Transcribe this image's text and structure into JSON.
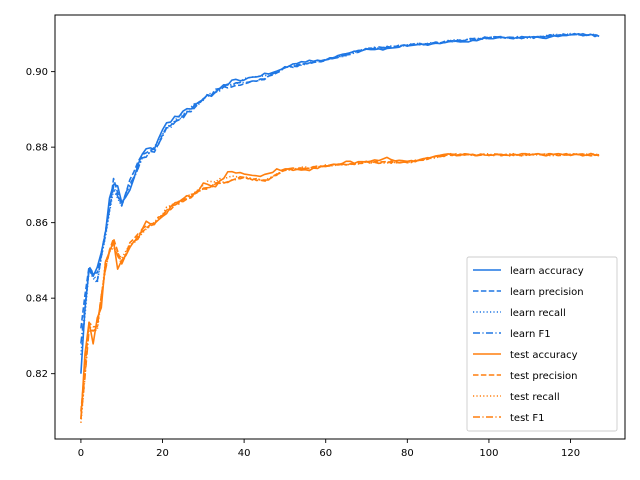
{
  "chart_data": {
    "type": "line",
    "title": "",
    "xlabel": "",
    "ylabel": "",
    "xlim": [
      -6.35,
      133.35
    ],
    "ylim": [
      0.8027,
      0.915
    ],
    "x_ticks": [
      0,
      20,
      40,
      60,
      80,
      100,
      120
    ],
    "y_ticks": [
      0.82,
      0.84,
      0.86,
      0.88,
      0.9
    ],
    "y_tick_labels": [
      "0.82",
      "0.84",
      "0.86",
      "0.88",
      "0.90"
    ],
    "grid": false,
    "legend_position": "lower-right",
    "colors": {
      "learn": "#1f77e4",
      "test": "#ff7f0e"
    },
    "x_range": [
      0,
      127
    ],
    "series": [
      {
        "name": "learn accuracy",
        "group": "learn",
        "dash": "solid",
        "anchors": [
          [
            0,
            0.82
          ],
          [
            1,
            0.838
          ],
          [
            2,
            0.847
          ],
          [
            3,
            0.845
          ],
          [
            4,
            0.849
          ],
          [
            5,
            0.853
          ],
          [
            6,
            0.858
          ],
          [
            7,
            0.866
          ],
          [
            8,
            0.87
          ],
          [
            9,
            0.869
          ],
          [
            10,
            0.865
          ],
          [
            12,
            0.869
          ],
          [
            14,
            0.875
          ],
          [
            16,
            0.88
          ],
          [
            18,
            0.88
          ],
          [
            20,
            0.885
          ],
          [
            22,
            0.887
          ],
          [
            25,
            0.889
          ],
          [
            28,
            0.891
          ],
          [
            30,
            0.893
          ],
          [
            33,
            0.894
          ],
          [
            36,
            0.897
          ],
          [
            40,
            0.898
          ],
          [
            44,
            0.899
          ],
          [
            48,
            0.9
          ],
          [
            52,
            0.902
          ],
          [
            56,
            0.903
          ],
          [
            60,
            0.903
          ],
          [
            65,
            0.905
          ],
          [
            70,
            0.906
          ],
          [
            75,
            0.906
          ],
          [
            80,
            0.907
          ],
          [
            85,
            0.907
          ],
          [
            90,
            0.908
          ],
          [
            95,
            0.908
          ],
          [
            100,
            0.909
          ],
          [
            105,
            0.909
          ],
          [
            110,
            0.909
          ],
          [
            115,
            0.909
          ],
          [
            120,
            0.91
          ],
          [
            127,
            0.9095
          ]
        ]
      },
      {
        "name": "learn precision",
        "group": "learn",
        "dash": "dashed",
        "anchors": [
          [
            0,
            0.832
          ],
          [
            2,
            0.849
          ],
          [
            4,
            0.846
          ],
          [
            6,
            0.857
          ],
          [
            8,
            0.871
          ],
          [
            10,
            0.865
          ],
          [
            12,
            0.871
          ],
          [
            15,
            0.878
          ],
          [
            18,
            0.879
          ],
          [
            21,
            0.885
          ],
          [
            25,
            0.888
          ],
          [
            30,
            0.893
          ],
          [
            35,
            0.896
          ],
          [
            40,
            0.897
          ],
          [
            45,
            0.898
          ],
          [
            50,
            0.901
          ],
          [
            60,
            0.903
          ],
          [
            70,
            0.906
          ],
          [
            80,
            0.907
          ],
          [
            90,
            0.908
          ],
          [
            100,
            0.909
          ],
          [
            110,
            0.909
          ],
          [
            120,
            0.91
          ],
          [
            127,
            0.9095
          ]
        ]
      },
      {
        "name": "learn recall",
        "group": "learn",
        "dash": "dotted",
        "anchors": [
          [
            0,
            0.825
          ],
          [
            2,
            0.847
          ],
          [
            4,
            0.844
          ],
          [
            6,
            0.856
          ],
          [
            8,
            0.869
          ],
          [
            10,
            0.865
          ],
          [
            12,
            0.87
          ],
          [
            15,
            0.877
          ],
          [
            18,
            0.88
          ],
          [
            21,
            0.885
          ],
          [
            25,
            0.889
          ],
          [
            30,
            0.893
          ],
          [
            35,
            0.896
          ],
          [
            40,
            0.898
          ],
          [
            45,
            0.899
          ],
          [
            50,
            0.901
          ],
          [
            60,
            0.903
          ],
          [
            70,
            0.906
          ],
          [
            80,
            0.907
          ],
          [
            90,
            0.908
          ],
          [
            100,
            0.909
          ],
          [
            110,
            0.909
          ],
          [
            120,
            0.91
          ],
          [
            127,
            0.9095
          ]
        ]
      },
      {
        "name": "learn F1",
        "group": "learn",
        "dash": "dashdot",
        "anchors": [
          [
            0,
            0.828
          ],
          [
            2,
            0.848
          ],
          [
            4,
            0.845
          ],
          [
            6,
            0.857
          ],
          [
            8,
            0.87
          ],
          [
            10,
            0.865
          ],
          [
            12,
            0.87
          ],
          [
            15,
            0.877
          ],
          [
            18,
            0.879
          ],
          [
            21,
            0.885
          ],
          [
            25,
            0.888
          ],
          [
            30,
            0.893
          ],
          [
            35,
            0.896
          ],
          [
            40,
            0.897
          ],
          [
            45,
            0.898
          ],
          [
            50,
            0.901
          ],
          [
            60,
            0.903
          ],
          [
            70,
            0.906
          ],
          [
            80,
            0.907
          ],
          [
            90,
            0.908
          ],
          [
            100,
            0.909
          ],
          [
            110,
            0.909
          ],
          [
            120,
            0.91
          ],
          [
            127,
            0.9095
          ]
        ]
      },
      {
        "name": "test accuracy",
        "group": "test",
        "dash": "solid",
        "anchors": [
          [
            0,
            0.808
          ],
          [
            1,
            0.826
          ],
          [
            2,
            0.834
          ],
          [
            3,
            0.828
          ],
          [
            4,
            0.835
          ],
          [
            5,
            0.838
          ],
          [
            6,
            0.849
          ],
          [
            7,
            0.852
          ],
          [
            8,
            0.855
          ],
          [
            9,
            0.848
          ],
          [
            10,
            0.85
          ],
          [
            12,
            0.853
          ],
          [
            14,
            0.856
          ],
          [
            16,
            0.86
          ],
          [
            18,
            0.86
          ],
          [
            20,
            0.862
          ],
          [
            22,
            0.864
          ],
          [
            25,
            0.866
          ],
          [
            28,
            0.868
          ],
          [
            30,
            0.87
          ],
          [
            33,
            0.87
          ],
          [
            36,
            0.873
          ],
          [
            40,
            0.873
          ],
          [
            44,
            0.872
          ],
          [
            48,
            0.874
          ],
          [
            52,
            0.874
          ],
          [
            56,
            0.874
          ],
          [
            60,
            0.875
          ],
          [
            65,
            0.876
          ],
          [
            70,
            0.876
          ],
          [
            75,
            0.877
          ],
          [
            80,
            0.876
          ],
          [
            85,
            0.877
          ],
          [
            90,
            0.878
          ],
          [
            95,
            0.878
          ],
          [
            100,
            0.878
          ],
          [
            105,
            0.878
          ],
          [
            110,
            0.878
          ],
          [
            115,
            0.878
          ],
          [
            120,
            0.878
          ],
          [
            127,
            0.878
          ]
        ]
      },
      {
        "name": "test precision",
        "group": "test",
        "dash": "dashed",
        "anchors": [
          [
            0,
            0.81
          ],
          [
            2,
            0.833
          ],
          [
            4,
            0.832
          ],
          [
            6,
            0.848
          ],
          [
            8,
            0.856
          ],
          [
            10,
            0.849
          ],
          [
            12,
            0.855
          ],
          [
            15,
            0.858
          ],
          [
            18,
            0.86
          ],
          [
            21,
            0.863
          ],
          [
            25,
            0.866
          ],
          [
            30,
            0.869
          ],
          [
            35,
            0.871
          ],
          [
            40,
            0.872
          ],
          [
            45,
            0.871
          ],
          [
            50,
            0.874
          ],
          [
            60,
            0.875
          ],
          [
            70,
            0.876
          ],
          [
            80,
            0.876
          ],
          [
            90,
            0.878
          ],
          [
            100,
            0.878
          ],
          [
            110,
            0.878
          ],
          [
            120,
            0.878
          ],
          [
            127,
            0.878
          ]
        ]
      },
      {
        "name": "test recall",
        "group": "test",
        "dash": "dotted",
        "anchors": [
          [
            0,
            0.807
          ],
          [
            2,
            0.832
          ],
          [
            4,
            0.831
          ],
          [
            6,
            0.849
          ],
          [
            8,
            0.854
          ],
          [
            10,
            0.85
          ],
          [
            12,
            0.854
          ],
          [
            15,
            0.857
          ],
          [
            18,
            0.86
          ],
          [
            21,
            0.864
          ],
          [
            25,
            0.866
          ],
          [
            30,
            0.87
          ],
          [
            35,
            0.872
          ],
          [
            40,
            0.872
          ],
          [
            45,
            0.871
          ],
          [
            50,
            0.874
          ],
          [
            60,
            0.875
          ],
          [
            70,
            0.876
          ],
          [
            80,
            0.876
          ],
          [
            90,
            0.878
          ],
          [
            100,
            0.878
          ],
          [
            110,
            0.878
          ],
          [
            120,
            0.878
          ],
          [
            127,
            0.878
          ]
        ]
      },
      {
        "name": "test F1",
        "group": "test",
        "dash": "dashdot",
        "anchors": [
          [
            0,
            0.808
          ],
          [
            2,
            0.832
          ],
          [
            4,
            0.832
          ],
          [
            6,
            0.848
          ],
          [
            8,
            0.855
          ],
          [
            10,
            0.849
          ],
          [
            12,
            0.854
          ],
          [
            15,
            0.858
          ],
          [
            18,
            0.86
          ],
          [
            21,
            0.863
          ],
          [
            25,
            0.866
          ],
          [
            30,
            0.869
          ],
          [
            35,
            0.871
          ],
          [
            40,
            0.872
          ],
          [
            45,
            0.871
          ],
          [
            50,
            0.874
          ],
          [
            60,
            0.875
          ],
          [
            70,
            0.876
          ],
          [
            80,
            0.876
          ],
          [
            90,
            0.878
          ],
          [
            100,
            0.878
          ],
          [
            110,
            0.878
          ],
          [
            120,
            0.878
          ],
          [
            127,
            0.878
          ]
        ]
      }
    ]
  }
}
